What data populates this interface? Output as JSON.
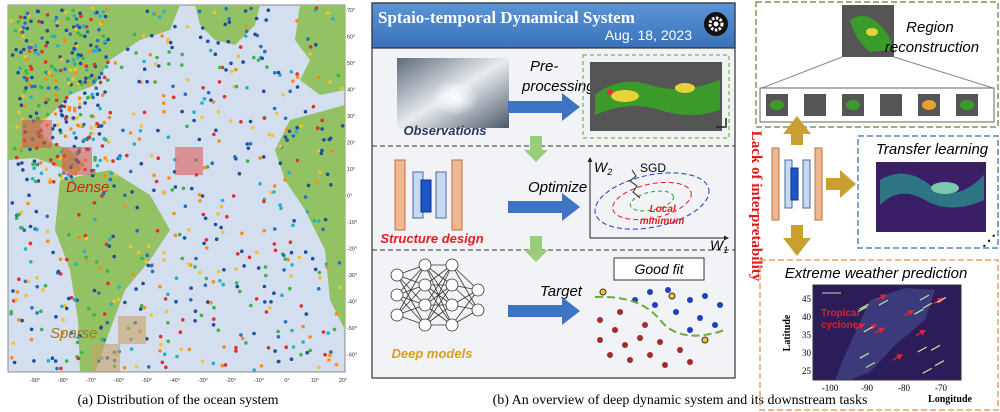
{
  "map": {
    "lat_labels": [
      "70°",
      "60°",
      "50°",
      "40°",
      "30°",
      "20°",
      "10°",
      "0°",
      "-10°",
      "-20°",
      "-30°",
      "-40°",
      "-50°",
      "-60°"
    ],
    "lon_labels": [
      "-90°",
      "-80°",
      "-70°",
      "-60°",
      "-50°",
      "-40°",
      "-30°",
      "-20°",
      "-10°",
      "0°",
      "10°",
      "20°"
    ],
    "dense": "Dense",
    "sparse": "Sparse",
    "caption": "(a) Distribution of the ocean system"
  },
  "system": {
    "title": "Sptaio-temporal Dynamical System",
    "date": "Aug. 18, 2023",
    "preprocessing": [
      "Pre-",
      "processing"
    ],
    "observations": "Observations",
    "optimize": "Optimize",
    "structure_design": "Structure design",
    "sgd": "SGD",
    "w2": [
      "W",
      "2"
    ],
    "w1": [
      "W",
      "1"
    ],
    "local_minimum": [
      "Local",
      "minimum"
    ],
    "target": "Target",
    "good_fit": "Good fit",
    "deep_models": "Deep models",
    "caption": "(b) An overview of deep dynamic system and its downstream tasks"
  },
  "lack": "Lack of interpretability",
  "tasks": {
    "region": [
      "Region",
      "reconstruction"
    ],
    "transfer": "Transfer learning",
    "extreme": "Extreme weather prediction",
    "cyclone": [
      "Tropical",
      "cyclone"
    ],
    "ylabel": "Latitude",
    "xlabel": "Longitude",
    "yticks": [
      "45",
      "40",
      "35",
      "30",
      "25"
    ],
    "xticks": [
      "-100",
      "-90",
      "-80",
      "-70"
    ]
  }
}
